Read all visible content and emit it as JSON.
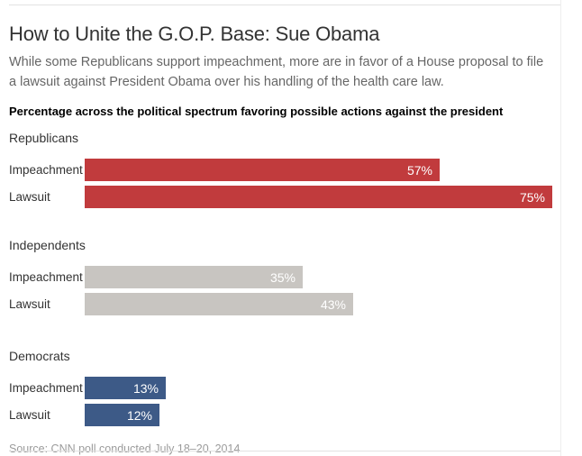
{
  "page": {
    "title": "How to Unite the G.O.P. Base: Sue Obama",
    "deck": "While some Republicans support impeachment, more are in favor of a House proposal to file a lawsuit against President Obama over his handling of the health care law.",
    "source": "Source: CNN poll conducted July 18–20, 2014"
  },
  "chart_data": {
    "type": "bar",
    "orientation": "horizontal",
    "title": "Percentage across the political spectrum favoring possible actions against the president",
    "categories": [
      "Impeachment",
      "Lawsuit"
    ],
    "groups": [
      {
        "name": "Republicans",
        "color": "#c13b3d",
        "values": [
          57,
          75
        ]
      },
      {
        "name": "Independents",
        "color": "#c8c5c1",
        "values": [
          35,
          43
        ]
      },
      {
        "name": "Democrats",
        "color": "#3d5a87",
        "values": [
          13,
          12
        ]
      }
    ],
    "unit": "%",
    "xlim": [
      0,
      100
    ],
    "grid": false,
    "legend": "none",
    "value_labels": "inside-right, white"
  }
}
